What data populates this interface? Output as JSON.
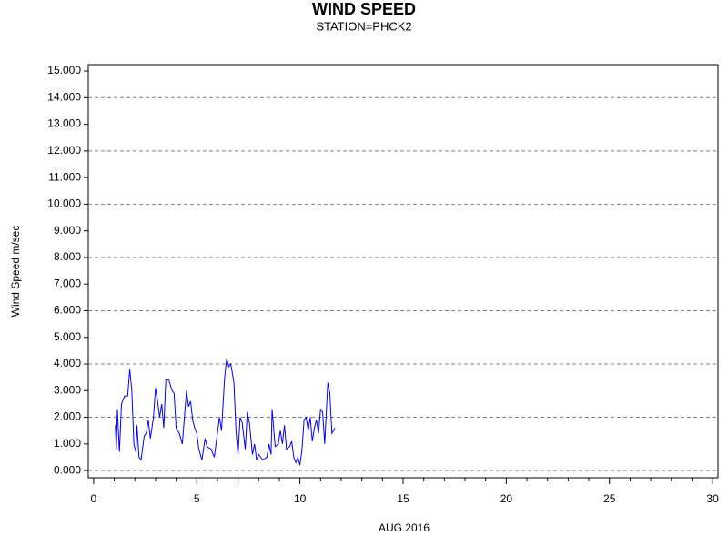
{
  "chart_data": {
    "type": "line",
    "title": "WIND SPEED",
    "subtitle": "STATION=PHCK2",
    "y_label": "Wind Speed m/sec",
    "x_label": "AUG 2016",
    "xlim": [
      -0.26,
      30.26
    ],
    "ylim": [
      -0.27,
      15.24
    ],
    "xticks": [
      0,
      5,
      10,
      15,
      20,
      25,
      30
    ],
    "xminorticks": [
      1,
      2,
      3,
      4,
      6,
      7,
      8,
      9,
      11,
      12,
      13,
      14,
      16,
      17,
      18,
      19,
      21,
      22,
      23,
      24,
      26,
      27,
      28,
      29
    ],
    "yticks": [
      {
        "value": 0,
        "label": "0.000"
      },
      {
        "value": 1,
        "label": "1.000"
      },
      {
        "value": 2,
        "label": "2.000"
      },
      {
        "value": 3,
        "label": "3.000"
      },
      {
        "value": 4,
        "label": "4.000"
      },
      {
        "value": 5,
        "label": "5.000"
      },
      {
        "value": 6,
        "label": "6.000"
      },
      {
        "value": 7,
        "label": "7.000"
      },
      {
        "value": 8,
        "label": "8.000"
      },
      {
        "value": 9,
        "label": "9.000"
      },
      {
        "value": 10,
        "label": "10.000"
      },
      {
        "value": 11,
        "label": "11.000"
      },
      {
        "value": 12,
        "label": "12.000"
      },
      {
        "value": 13,
        "label": "13.000"
      },
      {
        "value": 14,
        "label": "14.000"
      },
      {
        "value": 15,
        "label": "15.000"
      }
    ],
    "ygrid": [
      0,
      2,
      4,
      6,
      8,
      10,
      12,
      14
    ],
    "series": [
      {
        "color": "#0000ff",
        "x": [
          1.05,
          1.1,
          1.15,
          1.25,
          1.35,
          1.5,
          1.65,
          1.75,
          1.85,
          1.95,
          2.05,
          2.1,
          2.2,
          2.3,
          2.45,
          2.55,
          2.65,
          2.75,
          2.9,
          3.0,
          3.1,
          3.2,
          3.3,
          3.4,
          3.5,
          3.65,
          3.8,
          3.9,
          4.0,
          4.15,
          4.3,
          4.4,
          4.5,
          4.6,
          4.7,
          4.8,
          4.9,
          5.0,
          5.1,
          5.25,
          5.4,
          5.5,
          5.7,
          5.85,
          6.0,
          6.1,
          6.2,
          6.35,
          6.45,
          6.55,
          6.65,
          6.8,
          6.9,
          7.0,
          7.1,
          7.2,
          7.35,
          7.45,
          7.55,
          7.7,
          7.8,
          7.9,
          8.0,
          8.2,
          8.4,
          8.5,
          8.6,
          8.65,
          8.8,
          8.95,
          9.05,
          9.15,
          9.25,
          9.35,
          9.5,
          9.6,
          9.7,
          9.8,
          9.9,
          10.0,
          10.1,
          10.2,
          10.3,
          10.4,
          10.5,
          10.6,
          10.7,
          10.8,
          10.9,
          11.0,
          11.1,
          11.2,
          11.35,
          11.45,
          11.55,
          11.7
        ],
        "values": [
          1.7,
          0.8,
          2.3,
          0.7,
          2.5,
          2.8,
          2.8,
          3.8,
          3.0,
          1.0,
          0.7,
          1.7,
          0.5,
          0.4,
          1.3,
          1.4,
          1.9,
          1.2,
          2.0,
          3.1,
          2.6,
          2.0,
          2.5,
          1.6,
          3.4,
          3.4,
          3.0,
          2.9,
          1.6,
          1.4,
          1.0,
          2.0,
          3.0,
          2.4,
          2.6,
          1.9,
          1.6,
          1.4,
          0.8,
          0.4,
          1.2,
          0.9,
          0.8,
          0.5,
          1.4,
          2.0,
          1.5,
          3.5,
          4.2,
          3.9,
          4.0,
          3.3,
          1.5,
          0.6,
          2.0,
          1.8,
          0.8,
          2.2,
          1.8,
          0.6,
          1.0,
          0.4,
          0.6,
          0.4,
          0.5,
          1.0,
          0.6,
          2.3,
          0.9,
          1.0,
          1.5,
          1.0,
          1.7,
          0.8,
          0.9,
          1.1,
          0.5,
          0.3,
          0.5,
          0.2,
          0.8,
          1.9,
          2.0,
          1.5,
          2.0,
          1.1,
          1.6,
          1.9,
          1.4,
          2.3,
          2.2,
          1.0,
          3.3,
          2.9,
          1.4,
          1.6
        ]
      }
    ]
  }
}
